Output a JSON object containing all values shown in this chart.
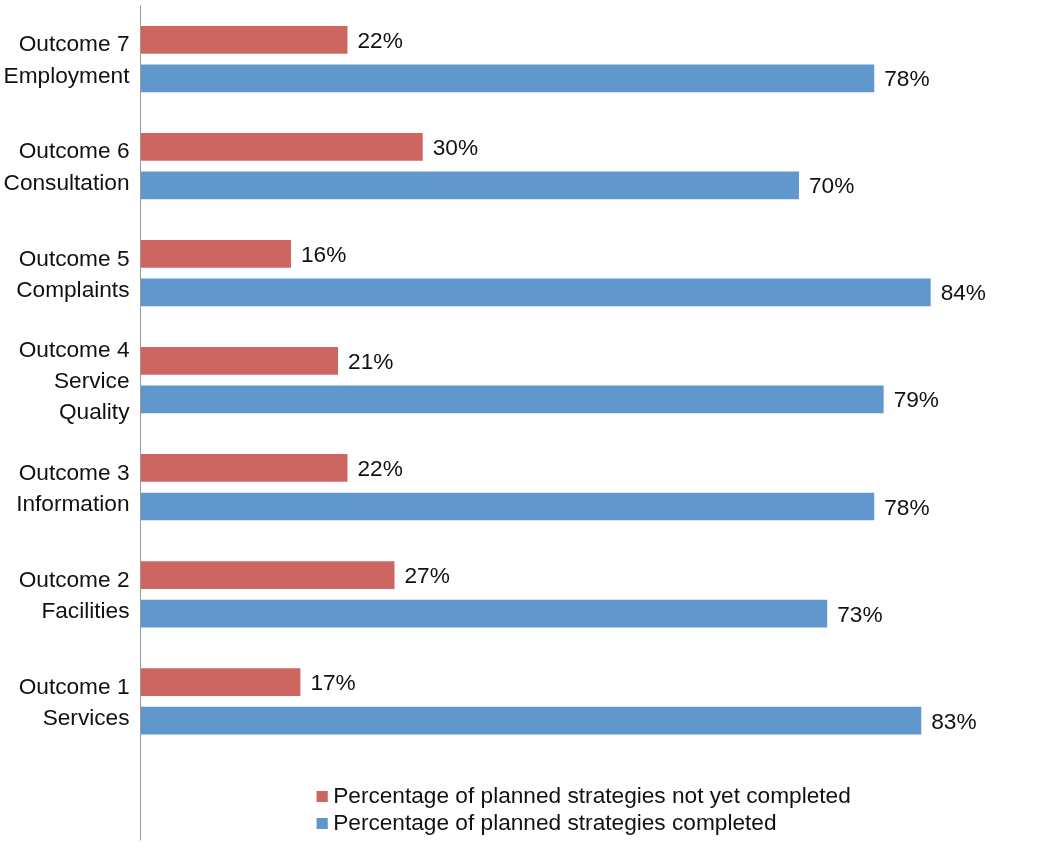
{
  "chart_data": {
    "type": "bar",
    "orientation": "horizontal",
    "categories": [
      "Outcome 7\nEmployment",
      "Outcome 6\nConsultation",
      "Outcome 5\nComplaints",
      "Outcome 4\nService\nQuality",
      "Outcome 3\nInformation",
      "Outcome 2\nFacilities",
      "Outcome 1\nServices"
    ],
    "series": [
      {
        "name": "Percentage of planned strategies not yet completed",
        "color": "#cd6660",
        "values": [
          22,
          30,
          16,
          21,
          22,
          27,
          17
        ],
        "value_labels": [
          "22%",
          "30%",
          "16%",
          "21%",
          "22%",
          "27%",
          "17%"
        ]
      },
      {
        "name": "Percentage of planned strategies completed",
        "color": "#6097cc",
        "values": [
          78,
          70,
          84,
          79,
          78,
          73,
          83
        ],
        "value_labels": [
          "78%",
          "70%",
          "84%",
          "79%",
          "78%",
          "73%",
          "83%"
        ]
      }
    ],
    "legend": "bottom",
    "grid": false
  }
}
